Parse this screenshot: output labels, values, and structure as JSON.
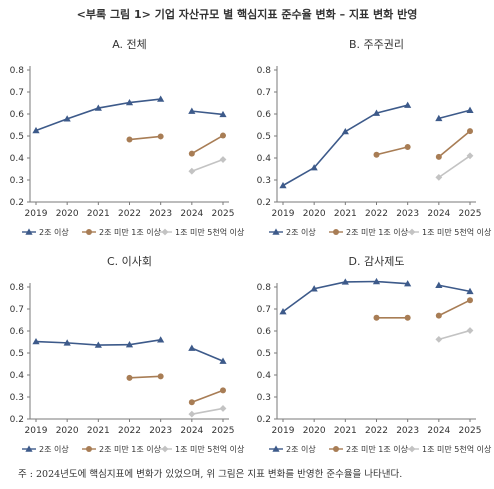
{
  "title": "<부록 그림 1> 기업 자산규모 별 핵심지표 준수율 변화 – 지표 변화 반영",
  "footnote": "주 : 2024년도에 핵심지표에 변화가 있었으며, 위 그림은 지표 변화를 반영한 준수율을 나타낸다.",
  "colors": {
    "large": "#3d5a8a",
    "mid": "#a87d55",
    "small": "#c3c3c3",
    "axis": "#7a7a7a"
  },
  "chart_data": [
    {
      "type": "line",
      "title": "A. 전체",
      "x": [
        "2019",
        "2020",
        "2021",
        "2022",
        "2023",
        "2024",
        "2025"
      ],
      "ylim": [
        0.2,
        0.8
      ],
      "yticks": [
        "0.2",
        "0.3",
        "0.4",
        "0.5",
        "0.6",
        "0.7",
        "0.8"
      ],
      "legend": "bottom",
      "series": [
        {
          "name": "2조 이상",
          "color": "large",
          "marker": "triangle",
          "segments": [
            [
              [
                0,
                0.525
              ],
              [
                1,
                0.578
              ],
              [
                2,
                0.627
              ],
              [
                3,
                0.652
              ],
              [
                4,
                0.668
              ]
            ],
            [
              [
                5,
                0.613
              ],
              [
                6,
                0.598
              ]
            ]
          ]
        },
        {
          "name": "2조 미만 1조 이상",
          "color": "mid",
          "marker": "circle",
          "segments": [
            [
              [
                3,
                0.484
              ],
              [
                4,
                0.498
              ]
            ],
            [
              [
                5,
                0.42
              ],
              [
                6,
                0.502
              ]
            ]
          ]
        },
        {
          "name": "1조 미만 5천억 이상",
          "color": "small",
          "marker": "diamond",
          "segments": [
            [
              [
                5,
                0.34
              ],
              [
                6,
                0.393
              ]
            ]
          ]
        }
      ]
    },
    {
      "type": "line",
      "title": "B. 주주권리",
      "x": [
        "2019",
        "2020",
        "2021",
        "2022",
        "2023",
        "2024",
        "2025"
      ],
      "ylim": [
        0.2,
        0.8
      ],
      "yticks": [
        "0.2",
        "0.3",
        "0.4",
        "0.5",
        "0.6",
        "0.7",
        "0.8"
      ],
      "legend": "bottom",
      "series": [
        {
          "name": "2조 이상",
          "color": "large",
          "marker": "triangle",
          "segments": [
            [
              [
                0,
                0.275
              ],
              [
                1,
                0.356
              ],
              [
                2,
                0.52
              ],
              [
                3,
                0.604
              ],
              [
                4,
                0.64
              ]
            ],
            [
              [
                5,
                0.58
              ],
              [
                6,
                0.617
              ]
            ]
          ]
        },
        {
          "name": "2조 미만 1조 이상",
          "color": "mid",
          "marker": "circle",
          "segments": [
            [
              [
                3,
                0.415
              ],
              [
                4,
                0.45
              ]
            ],
            [
              [
                5,
                0.405
              ],
              [
                6,
                0.522
              ]
            ]
          ]
        },
        {
          "name": "1조 미만 5천억 이상",
          "color": "small",
          "marker": "diamond",
          "segments": [
            [
              [
                5,
                0.312
              ],
              [
                6,
                0.41
              ]
            ]
          ]
        }
      ]
    },
    {
      "type": "line",
      "title": "C. 이사회",
      "x": [
        "2019",
        "2020",
        "2021",
        "2022",
        "2023",
        "2024",
        "2025"
      ],
      "ylim": [
        0.2,
        0.8
      ],
      "yticks": [
        "0.2",
        "0.3",
        "0.4",
        "0.5",
        "0.6",
        "0.7",
        "0.8"
      ],
      "legend": "bottom",
      "series": [
        {
          "name": "2조 이상",
          "color": "large",
          "marker": "triangle",
          "segments": [
            [
              [
                0,
                0.552
              ],
              [
                1,
                0.546
              ],
              [
                2,
                0.536
              ],
              [
                3,
                0.538
              ],
              [
                4,
                0.56
              ]
            ],
            [
              [
                5,
                0.522
              ],
              [
                6,
                0.463
              ]
            ]
          ]
        },
        {
          "name": "2조 미만 1조 이상",
          "color": "mid",
          "marker": "circle",
          "segments": [
            [
              [
                3,
                0.387
              ],
              [
                4,
                0.394
              ]
            ],
            [
              [
                5,
                0.276
              ],
              [
                6,
                0.33
              ]
            ]
          ]
        },
        {
          "name": "1조 미만 5천억 이상",
          "color": "small",
          "marker": "diamond",
          "segments": [
            [
              [
                5,
                0.222
              ],
              [
                6,
                0.248
              ]
            ]
          ]
        }
      ]
    },
    {
      "type": "line",
      "title": "D. 감사제도",
      "x": [
        "2019",
        "2020",
        "2021",
        "2022",
        "2023",
        "2024",
        "2025"
      ],
      "ylim": [
        0.2,
        0.8
      ],
      "yticks": [
        "0.2",
        "0.3",
        "0.4",
        "0.5",
        "0.6",
        "0.7",
        "0.8"
      ],
      "legend": "bottom",
      "series": [
        {
          "name": "2조 이상",
          "color": "large",
          "marker": "triangle",
          "segments": [
            [
              [
                0,
                0.688
              ],
              [
                1,
                0.792
              ],
              [
                2,
                0.823
              ],
              [
                3,
                0.825
              ],
              [
                4,
                0.815
              ]
            ],
            [
              [
                5,
                0.808
              ],
              [
                6,
                0.78
              ]
            ]
          ]
        },
        {
          "name": "2조 미만 1조 이상",
          "color": "mid",
          "marker": "circle",
          "segments": [
            [
              [
                3,
                0.66
              ],
              [
                4,
                0.66
              ]
            ],
            [
              [
                5,
                0.67
              ],
              [
                6,
                0.74
              ]
            ]
          ]
        },
        {
          "name": "1조 미만 5천억 이상",
          "color": "small",
          "marker": "diamond",
          "segments": [
            [
              [
                5,
                0.562
              ],
              [
                6,
                0.602
              ]
            ]
          ]
        }
      ]
    }
  ]
}
